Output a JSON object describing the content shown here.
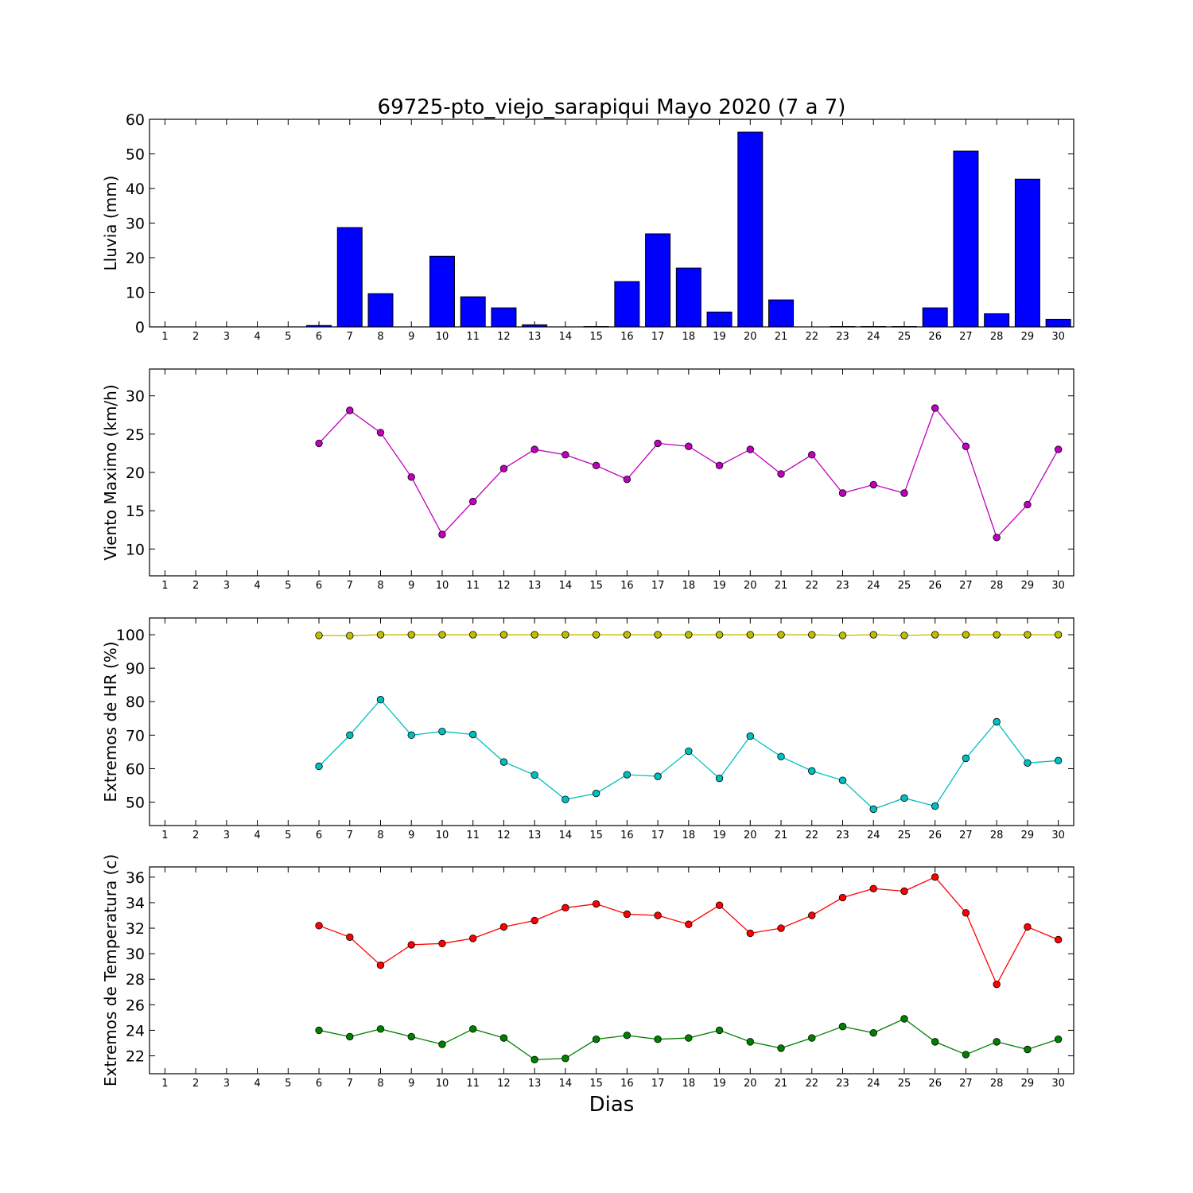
{
  "figure": {
    "title": "69725-pto_viejo_sarapiqui Mayo 2020  (7 a 7)",
    "xlabel": "Dias"
  },
  "colors": {
    "rain": "#0000ff",
    "wind": "#bf00bf",
    "hr_max": "#bfbf00",
    "hr_min": "#00bfbf",
    "temp_max": "#ff0000",
    "temp_min": "#008000"
  },
  "chart_data": [
    {
      "type": "bar",
      "ylabel": "Lluvia (mm)",
      "ylim": [
        0,
        60
      ],
      "yticks": [
        0,
        10,
        20,
        30,
        40,
        50,
        60
      ],
      "categories": [
        1,
        2,
        3,
        4,
        5,
        6,
        7,
        8,
        9,
        10,
        11,
        12,
        13,
        14,
        15,
        16,
        17,
        18,
        19,
        20,
        21,
        22,
        23,
        24,
        25,
        26,
        27,
        28,
        29,
        30
      ],
      "series": [
        {
          "values": [
            0,
            0,
            0,
            0,
            0,
            0.4,
            28.7,
            9.6,
            0,
            20.4,
            8.7,
            5.5,
            0.6,
            0,
            0.1,
            13.1,
            26.9,
            17.0,
            4.3,
            56.3,
            7.8,
            0,
            0.1,
            0.1,
            0.1,
            5.5,
            50.8,
            3.8,
            42.7,
            2.2
          ]
        }
      ]
    },
    {
      "type": "line",
      "ylabel": "Viento Maximo (km/h)",
      "ylim": [
        6.5,
        33.5
      ],
      "yticks": [
        10,
        15,
        20,
        25,
        30
      ],
      "categories": [
        1,
        2,
        3,
        4,
        5,
        6,
        7,
        8,
        9,
        10,
        11,
        12,
        13,
        14,
        15,
        16,
        17,
        18,
        19,
        20,
        21,
        22,
        23,
        24,
        25,
        26,
        27,
        28,
        29,
        30
      ],
      "series": [
        {
          "values": [
            null,
            null,
            null,
            null,
            null,
            23.8,
            28.1,
            25.2,
            19.4,
            11.9,
            16.2,
            20.5,
            23.0,
            22.3,
            20.9,
            19.1,
            23.8,
            23.4,
            20.9,
            23.0,
            19.8,
            22.3,
            17.3,
            18.4,
            17.3,
            28.4,
            23.4,
            11.5,
            15.8,
            23.0
          ]
        }
      ]
    },
    {
      "type": "line",
      "ylabel": "Extremos de HR (%)",
      "ylim": [
        43,
        105
      ],
      "yticks": [
        50,
        60,
        70,
        80,
        90,
        100
      ],
      "categories": [
        1,
        2,
        3,
        4,
        5,
        6,
        7,
        8,
        9,
        10,
        11,
        12,
        13,
        14,
        15,
        16,
        17,
        18,
        19,
        20,
        21,
        22,
        23,
        24,
        25,
        26,
        27,
        28,
        29,
        30
      ],
      "series": [
        {
          "values": [
            null,
            null,
            null,
            null,
            null,
            99.8,
            99.7,
            100,
            100,
            100,
            100,
            100,
            100,
            100,
            100,
            100,
            100,
            100,
            100,
            100,
            100,
            100,
            99.8,
            100,
            99.8,
            100,
            100,
            100,
            100,
            100
          ]
        },
        {
          "values": [
            null,
            null,
            null,
            null,
            null,
            60.7,
            70.0,
            80.6,
            70.0,
            71.1,
            70.2,
            62.0,
            58.1,
            50.8,
            52.6,
            58.2,
            57.7,
            65.2,
            57.1,
            69.7,
            63.6,
            59.3,
            56.5,
            47.9,
            51.2,
            48.8,
            63.1,
            74.0,
            61.7,
            62.4
          ]
        }
      ]
    },
    {
      "type": "line",
      "ylabel": "Extremos de Temperatura (c)",
      "ylim": [
        20.6,
        36.8
      ],
      "yticks": [
        22,
        24,
        26,
        28,
        30,
        32,
        34,
        36
      ],
      "categories": [
        1,
        2,
        3,
        4,
        5,
        6,
        7,
        8,
        9,
        10,
        11,
        12,
        13,
        14,
        15,
        16,
        17,
        18,
        19,
        20,
        21,
        22,
        23,
        24,
        25,
        26,
        27,
        28,
        29,
        30
      ],
      "series": [
        {
          "values": [
            null,
            null,
            null,
            null,
            null,
            32.2,
            31.3,
            29.1,
            30.7,
            30.8,
            31.2,
            32.1,
            32.6,
            33.6,
            33.9,
            33.1,
            33.0,
            32.3,
            33.8,
            31.6,
            32.0,
            33.0,
            34.4,
            35.1,
            34.9,
            36.0,
            33.2,
            27.6,
            32.1,
            31.1
          ]
        },
        {
          "values": [
            null,
            null,
            null,
            null,
            null,
            24.0,
            23.5,
            24.1,
            23.5,
            22.9,
            24.1,
            23.4,
            21.7,
            21.8,
            23.3,
            23.6,
            23.3,
            23.4,
            24.0,
            23.1,
            22.6,
            23.4,
            24.3,
            23.8,
            24.9,
            23.1,
            22.1,
            23.1,
            22.5,
            23.3
          ]
        }
      ]
    }
  ]
}
